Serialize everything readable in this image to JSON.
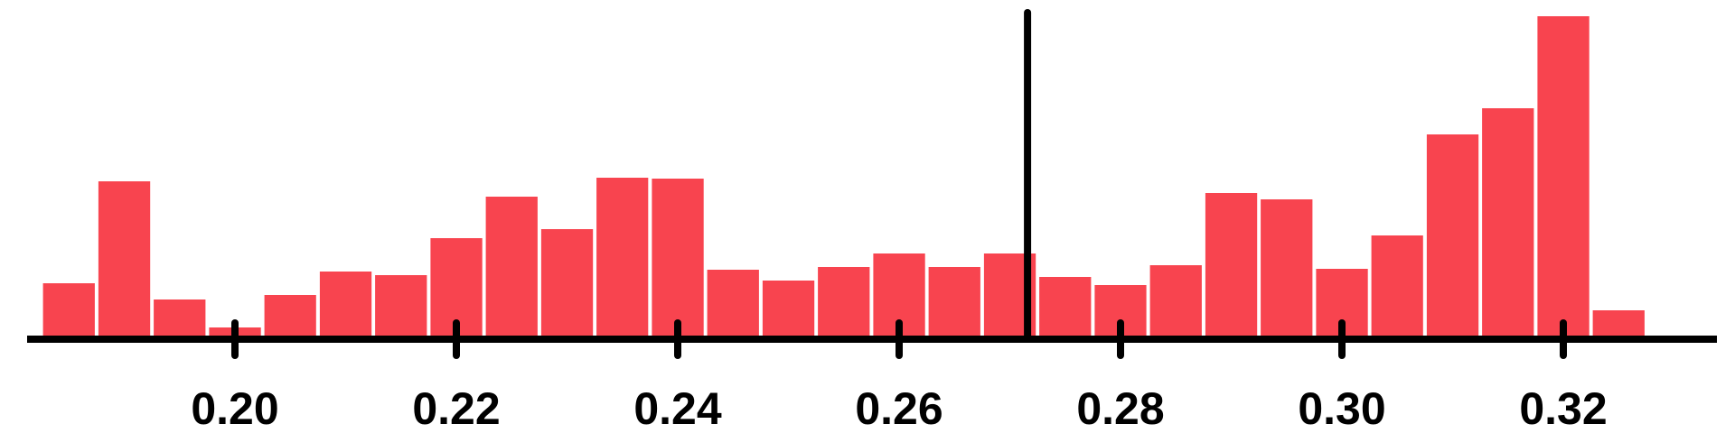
{
  "chart_data": {
    "type": "bar",
    "subtype": "histogram",
    "bin_width": 0.005,
    "x_start": 0.1825,
    "bins": [
      {
        "x0": 0.1825,
        "x1": 0.1875,
        "value": 62
      },
      {
        "x0": 0.1875,
        "x1": 0.1925,
        "value": 175
      },
      {
        "x0": 0.1925,
        "x1": 0.1975,
        "value": 44
      },
      {
        "x0": 0.1975,
        "x1": 0.2025,
        "value": 13
      },
      {
        "x0": 0.2025,
        "x1": 0.2075,
        "value": 49
      },
      {
        "x0": 0.2075,
        "x1": 0.2125,
        "value": 75
      },
      {
        "x0": 0.2125,
        "x1": 0.2175,
        "value": 71
      },
      {
        "x0": 0.2175,
        "x1": 0.2225,
        "value": 112
      },
      {
        "x0": 0.2225,
        "x1": 0.2275,
        "value": 158
      },
      {
        "x0": 0.2275,
        "x1": 0.2325,
        "value": 122
      },
      {
        "x0": 0.2325,
        "x1": 0.2375,
        "value": 179
      },
      {
        "x0": 0.2375,
        "x1": 0.2425,
        "value": 178
      },
      {
        "x0": 0.2425,
        "x1": 0.2475,
        "value": 77
      },
      {
        "x0": 0.2475,
        "x1": 0.2525,
        "value": 65
      },
      {
        "x0": 0.2525,
        "x1": 0.2575,
        "value": 80
      },
      {
        "x0": 0.2575,
        "x1": 0.2625,
        "value": 95
      },
      {
        "x0": 0.2625,
        "x1": 0.2675,
        "value": 80
      },
      {
        "x0": 0.2675,
        "x1": 0.2725,
        "value": 95
      },
      {
        "x0": 0.2725,
        "x1": 0.2775,
        "value": 69
      },
      {
        "x0": 0.2775,
        "x1": 0.2825,
        "value": 60
      },
      {
        "x0": 0.2825,
        "x1": 0.2875,
        "value": 82
      },
      {
        "x0": 0.2875,
        "x1": 0.2925,
        "value": 162
      },
      {
        "x0": 0.2925,
        "x1": 0.2975,
        "value": 155
      },
      {
        "x0": 0.2975,
        "x1": 0.3025,
        "value": 78
      },
      {
        "x0": 0.3025,
        "x1": 0.3075,
        "value": 115
      },
      {
        "x0": 0.3075,
        "x1": 0.3125,
        "value": 227
      },
      {
        "x0": 0.3125,
        "x1": 0.3175,
        "value": 256
      },
      {
        "x0": 0.3175,
        "x1": 0.3225,
        "value": 358
      },
      {
        "x0": 0.3225,
        "x1": 0.3275,
        "value": 32
      }
    ],
    "x_ticks": [
      {
        "value": 0.2,
        "label": "0.20"
      },
      {
        "value": 0.22,
        "label": "0.22"
      },
      {
        "value": 0.24,
        "label": "0.24"
      },
      {
        "value": 0.26,
        "label": "0.26"
      },
      {
        "value": 0.28,
        "label": "0.28"
      },
      {
        "value": 0.3,
        "label": "0.30"
      },
      {
        "value": 0.32,
        "label": "0.32"
      }
    ],
    "xlim": [
      0.1775,
      0.3305
    ],
    "ylim": [
      0,
      360
    ],
    "reference_line_x": 0.2716,
    "grid": false,
    "legend": "none",
    "colors": {
      "bar": "#f8444f",
      "axis": "#000000",
      "reference_line": "#000000"
    }
  }
}
